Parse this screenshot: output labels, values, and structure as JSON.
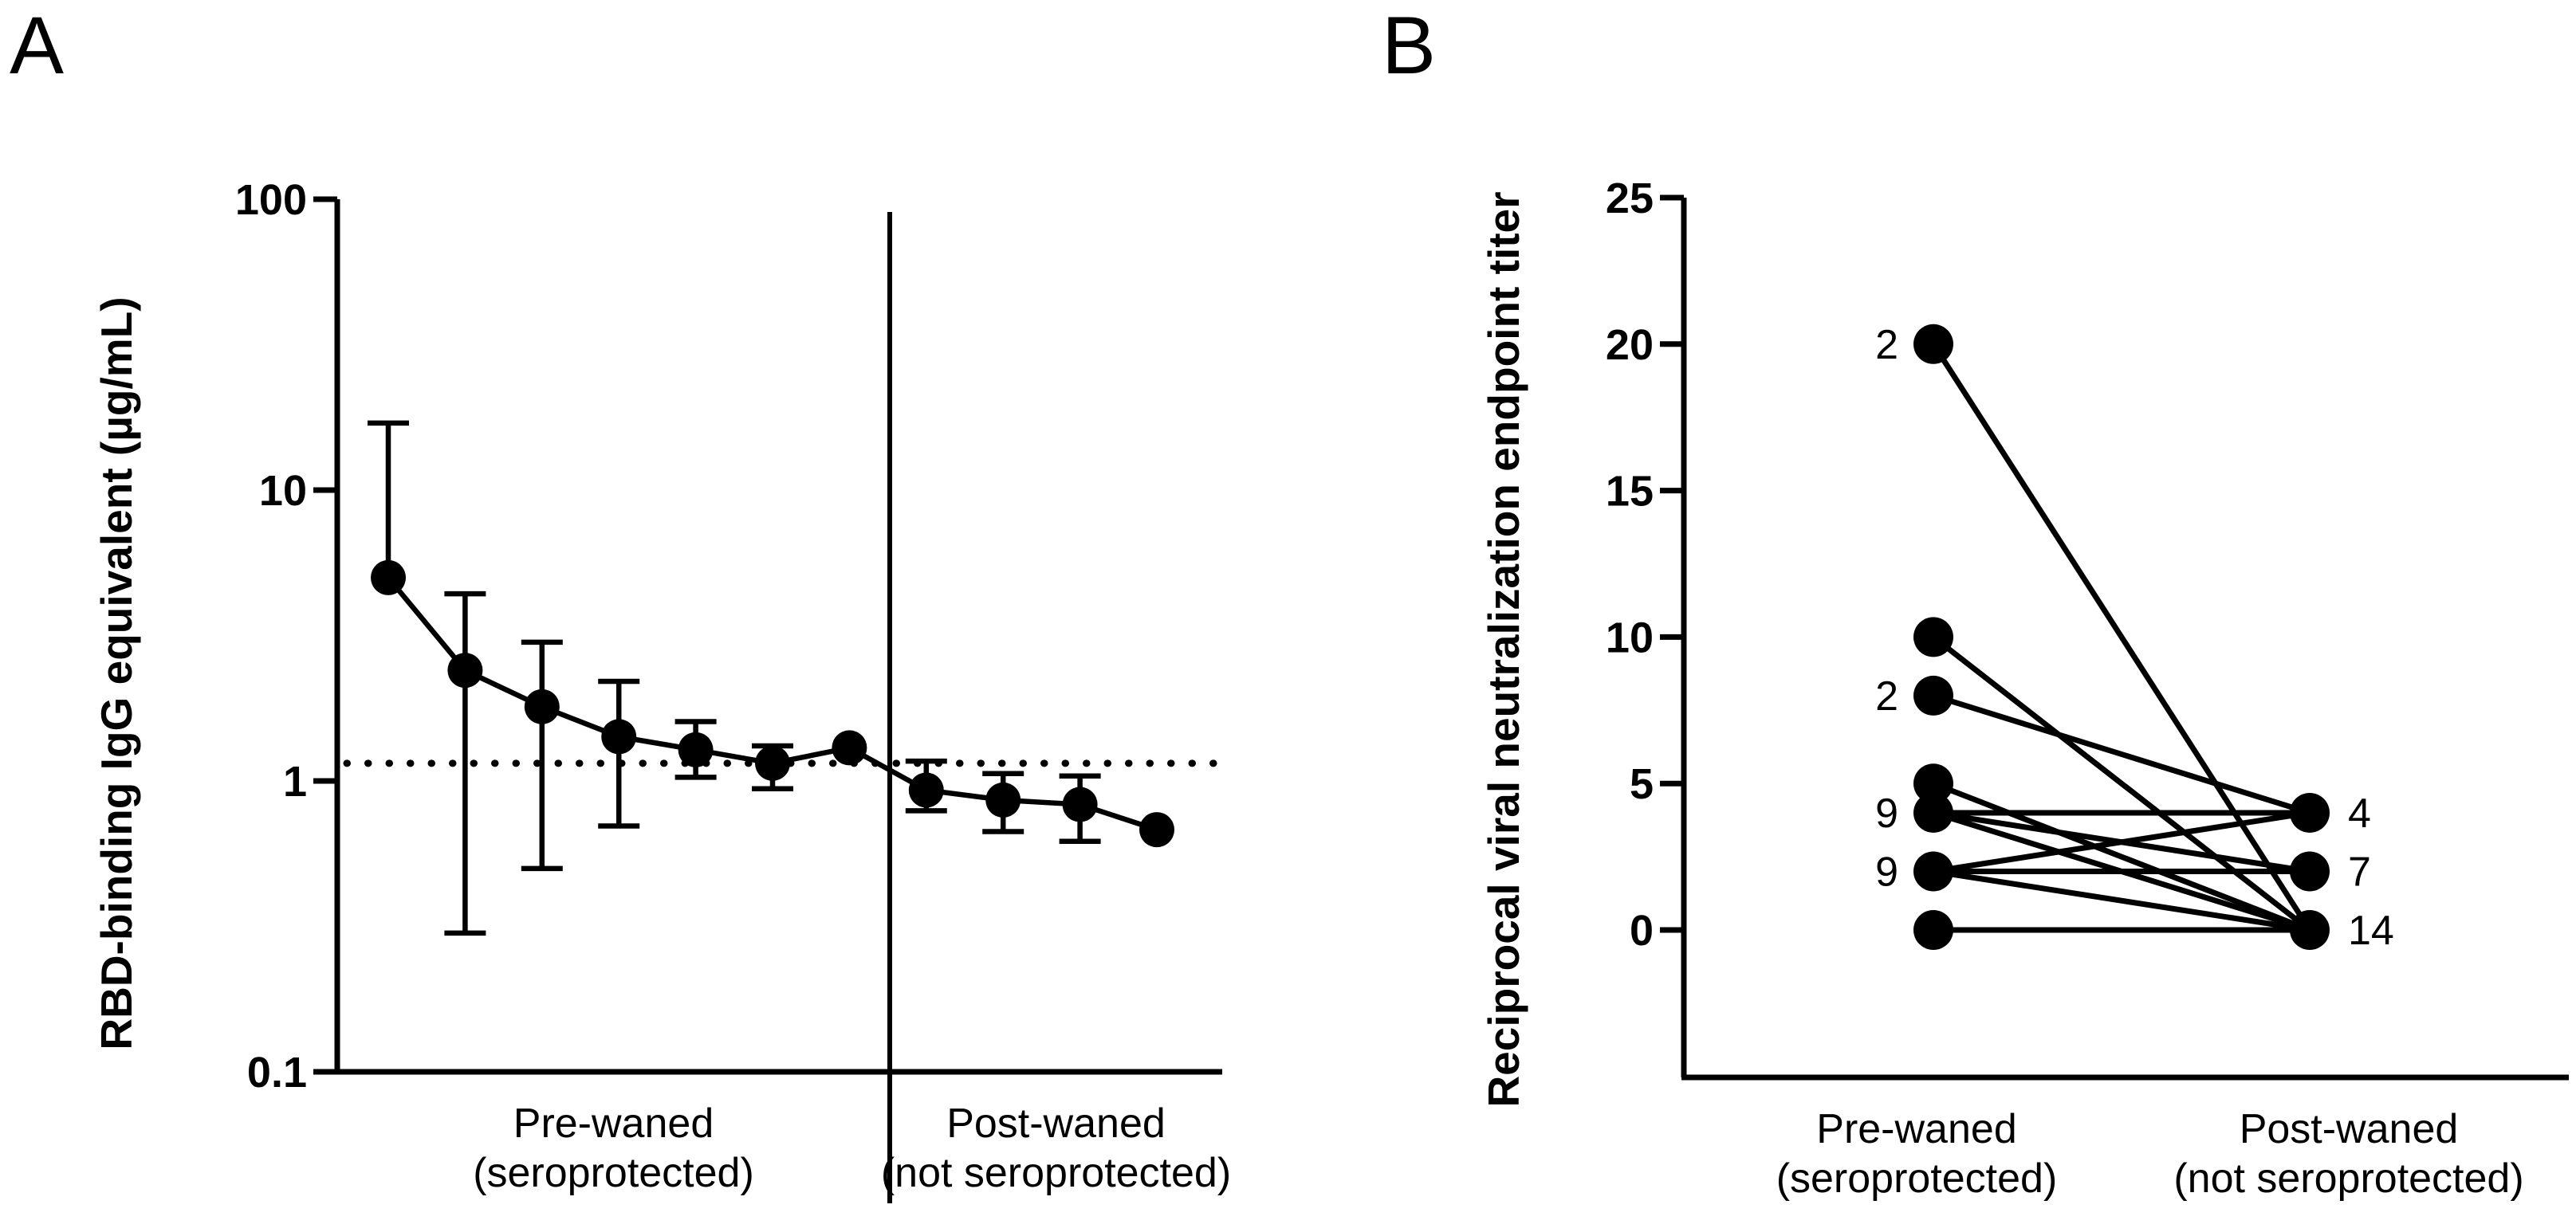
{
  "figure": {
    "background": "#ffffff",
    "ink_color": "#000000"
  },
  "panels": {
    "a": {
      "label": "A"
    },
    "b": {
      "label": "B"
    }
  },
  "chart_data": [
    {
      "type": "line",
      "panel": "A",
      "title": "",
      "xlabel": "",
      "ylabel": "RBD-binding IgG equivalent (µg/mL)",
      "y_scale": "log10",
      "ylim": [
        0.1,
        100
      ],
      "y_ticks": [
        "100",
        "10",
        "1",
        "0.1"
      ],
      "y_tick_values": [
        100,
        10,
        1,
        0.1
      ],
      "grid": false,
      "threshold_line": {
        "style": "dotted",
        "value": 1.15
      },
      "divider_between_groups": true,
      "groups": [
        {
          "label_lines": [
            "Pre-waned",
            "(seroprotected)"
          ],
          "n_points": 7
        },
        {
          "label_lines": [
            "Post-waned",
            "(not seroprotected)"
          ],
          "n_points": 4
        }
      ],
      "points": [
        {
          "value": 5.0,
          "err_up": 17.0,
          "err_down": null
        },
        {
          "value": 2.4,
          "err_up": 4.4,
          "err_down": 0.3
        },
        {
          "value": 1.8,
          "err_up": 3.0,
          "err_down": 0.5
        },
        {
          "value": 1.42,
          "err_up": 2.2,
          "err_down": 0.7
        },
        {
          "value": 1.28,
          "err_up": 1.6,
          "err_down": 1.03
        },
        {
          "value": 1.15,
          "err_up": 1.32,
          "err_down": 0.94
        },
        {
          "value": 1.3,
          "err_up": null,
          "err_down": null
        },
        {
          "value": 0.93,
          "err_up": 1.17,
          "err_down": 0.79
        },
        {
          "value": 0.86,
          "err_up": 1.06,
          "err_down": 0.67
        },
        {
          "value": 0.83,
          "err_up": 1.04,
          "err_down": 0.62
        },
        {
          "value": 0.68,
          "err_up": null,
          "err_down": null
        }
      ],
      "marker": "filled-circle",
      "legend": null
    },
    {
      "type": "paired-line",
      "panel": "B",
      "title": "",
      "xlabel": "",
      "ylabel": "Reciprocal viral neutralization endpoint titer",
      "y_scale": "linear",
      "ylim": [
        -5,
        25
      ],
      "y_ticks": [
        "25",
        "20",
        "15",
        "10",
        "5",
        "0"
      ],
      "y_tick_values": [
        25,
        20,
        15,
        10,
        5,
        0
      ],
      "grid": false,
      "categories": [
        {
          "label_lines": [
            "Pre-waned",
            "(seroprotected)"
          ]
        },
        {
          "label_lines": [
            "Post-waned",
            "(not seroprotected)"
          ]
        }
      ],
      "left_points": [
        {
          "value": 20,
          "count_label": "2"
        },
        {
          "value": 10,
          "count_label": null
        },
        {
          "value": 8,
          "count_label": "2"
        },
        {
          "value": 5,
          "count_label": null
        },
        {
          "value": 4,
          "count_label": "9"
        },
        {
          "value": 2,
          "count_label": "9"
        },
        {
          "value": 0,
          "count_label": null
        }
      ],
      "right_points": [
        {
          "value": 4,
          "count_label": "4"
        },
        {
          "value": 2,
          "count_label": "7"
        },
        {
          "value": 0,
          "count_label": "14"
        }
      ],
      "pairs": [
        [
          20,
          0
        ],
        [
          10,
          0
        ],
        [
          8,
          4
        ],
        [
          5,
          0
        ],
        [
          4,
          4
        ],
        [
          4,
          2
        ],
        [
          4,
          0
        ],
        [
          2,
          4
        ],
        [
          2,
          2
        ],
        [
          2,
          0
        ],
        [
          0,
          0
        ]
      ],
      "marker": "filled-circle",
      "legend": null
    }
  ]
}
